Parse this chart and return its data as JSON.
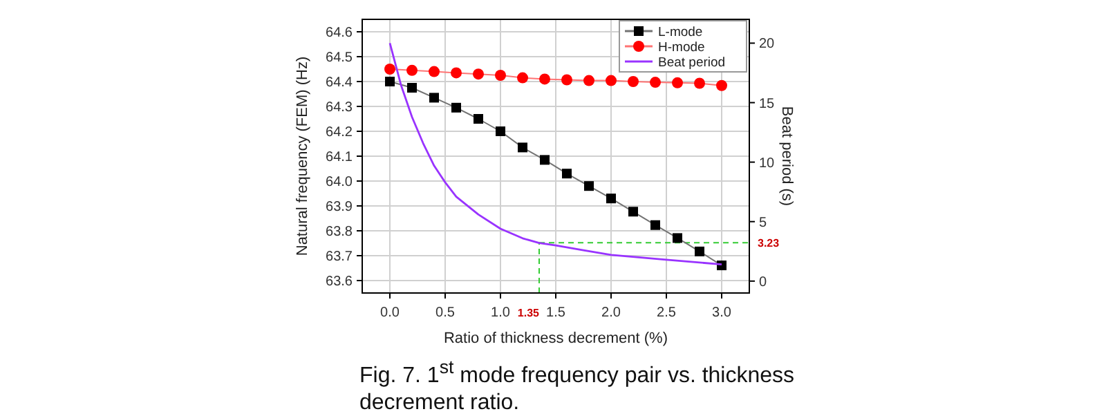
{
  "chart_data": {
    "type": "line",
    "xlabel": "Ratio of thickness decrement (%)",
    "ylabel": "Natural frequency (FEM) (Hz)",
    "y2label": "Beat period  (s)",
    "annotations": [
      "Fig. 7. 1$^{st}$ mode frequency pair vs. thickness decrement ratio."
    ],
    "xlim": [
      -0.25,
      3.25
    ],
    "xticks": [
      {
        "value": 0,
        "label": "0.0"
      },
      {
        "value": 0.5,
        "label": "0.5"
      },
      {
        "value": 1,
        "label": "1.0"
      },
      {
        "value": 1.5,
        "label": "1.5"
      },
      {
        "value": 2,
        "label": "2.0"
      },
      {
        "value": 2.5,
        "label": "2.5"
      },
      {
        "value": 3,
        "label": "3.0"
      }
    ],
    "ylim": [
      63.55,
      64.65
    ],
    "yticks": [
      63.6,
      63.7,
      63.8,
      63.9,
      {
        "value": 64,
        "label": "64.0"
      },
      64.1,
      64.2,
      64.3,
      64.4,
      64.5,
      64.6
    ],
    "y2lim": [
      -1,
      22
    ],
    "y2ticks": [
      0,
      5,
      10,
      15,
      20
    ],
    "grid": true,
    "legend": "top right",
    "line_style": "solid",
    "series": [
      {
        "name": "L-mode",
        "color": "#000000",
        "marker": "square",
        "x": [
          0,
          0.2,
          0.4,
          0.6,
          0.8,
          1.0,
          1.2,
          1.4,
          1.6,
          1.8,
          2.0,
          2.2,
          2.4,
          2.6,
          2.8,
          3.0
        ],
        "values": [
          64.4,
          64.375,
          64.335,
          64.295,
          64.25,
          64.2,
          64.135,
          64.085,
          64.03,
          63.98,
          63.93,
          63.877,
          63.823,
          63.771,
          63.717,
          63.661
        ]
      },
      {
        "name": "H-mode",
        "color": "#ff0000",
        "marker": "circle",
        "x": [
          0,
          0.2,
          0.4,
          0.6,
          0.8,
          1.0,
          1.2,
          1.4,
          1.6,
          1.8,
          2.0,
          2.2,
          2.4,
          2.6,
          2.8,
          3.0
        ],
        "values": [
          64.45,
          64.445,
          64.44,
          64.435,
          64.43,
          64.425,
          64.415,
          64.41,
          64.407,
          64.404,
          64.404,
          64.4,
          64.397,
          64.395,
          64.393,
          64.384
        ]
      },
      {
        "name": "Beat period",
        "color": "#9933ff",
        "marker": "none",
        "axis": "y2",
        "x": [
          0,
          0.1,
          0.2,
          0.3,
          0.4,
          0.5,
          0.6,
          0.8,
          1.0,
          1.2,
          1.35,
          1.5,
          1.75,
          2.0,
          2.5,
          3.0
        ],
        "values": [
          20.0,
          16.5,
          13.8,
          11.6,
          9.7,
          8.3,
          7.1,
          5.6,
          4.4,
          3.6,
          3.2,
          3.0,
          2.6,
          2.2,
          1.8,
          1.4
        ]
      }
    ],
    "ref_lines": [
      {
        "axis": "x",
        "value": 1.35,
        "label": "1.35",
        "color": "#33cc33",
        "line_style": "dashed"
      },
      {
        "axis": "y2",
        "value": 3.23,
        "label": "3.23",
        "color": "#33cc33",
        "line_style": "dashed"
      }
    ]
  }
}
